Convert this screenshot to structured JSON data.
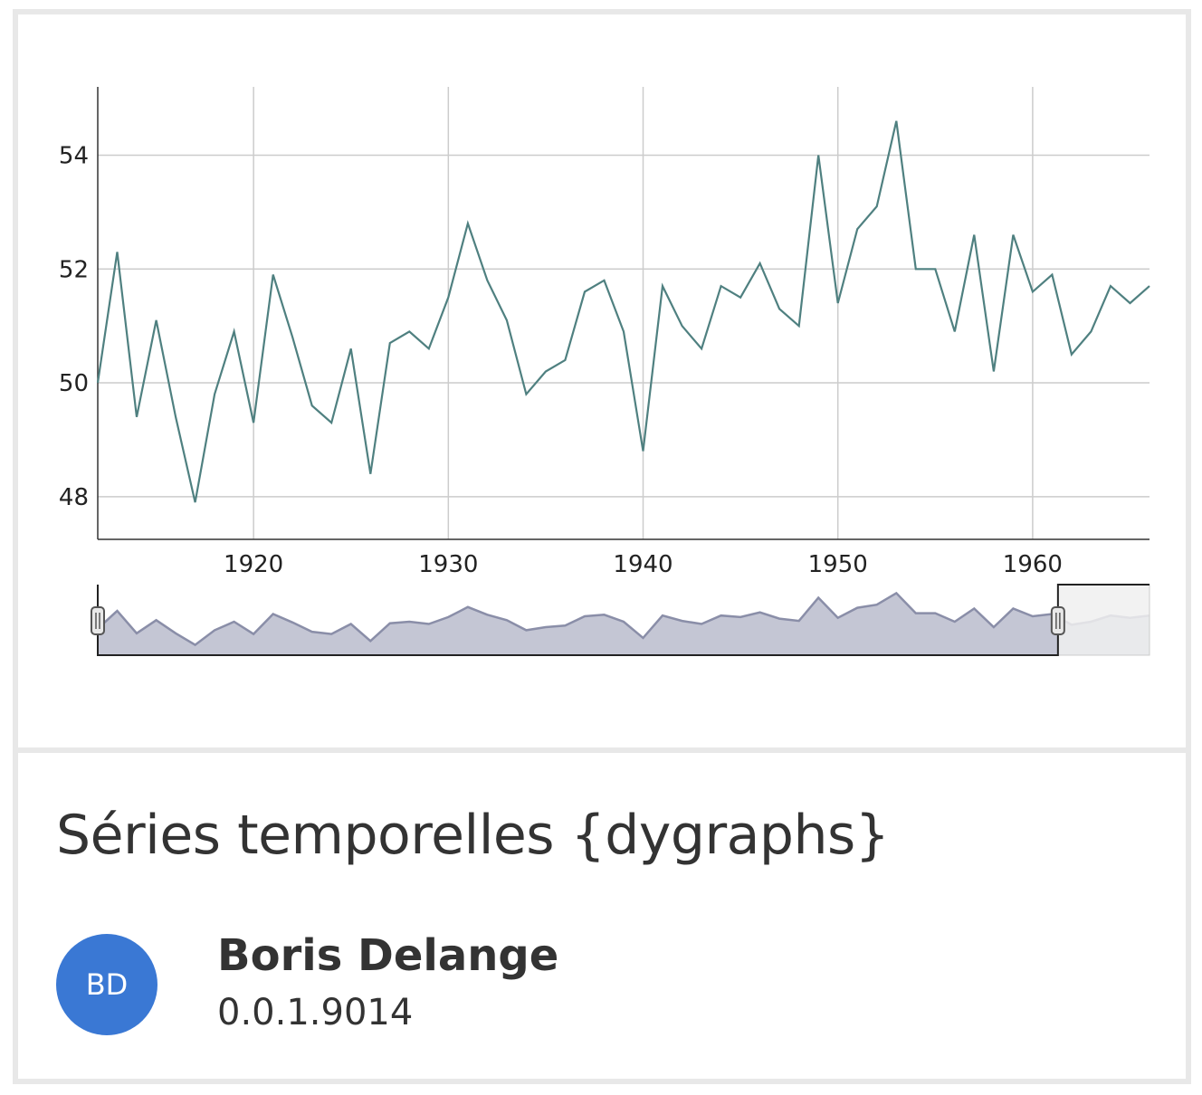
{
  "card": {
    "title": "Séries temporelles {dygraphs}",
    "author_initials": "BD",
    "author_name": "Boris Delange",
    "version": "0.0.1.9014"
  },
  "colors": {
    "series_line": "#4f8080",
    "range_fill": "#c4c6d4",
    "range_line": "#8a8ea8",
    "avatar": "#3a78d4"
  },
  "chart_data": {
    "type": "line",
    "x_ticks": [
      1920,
      1930,
      1940,
      1950,
      1960
    ],
    "y_ticks": [
      48,
      50,
      52,
      54
    ],
    "xlim": [
      1912,
      1966
    ],
    "ylim": [
      47.25,
      55.2
    ],
    "grid": true,
    "range_selector": {
      "visible": true,
      "selected": [
        1912,
        1961.3
      ]
    },
    "series": [
      {
        "x": [
          1912,
          1913,
          1914,
          1915,
          1916,
          1917,
          1918,
          1919,
          1920,
          1921,
          1922,
          1923,
          1924,
          1925,
          1926,
          1927,
          1928,
          1929,
          1930,
          1931,
          1932,
          1933,
          1934,
          1935,
          1936,
          1937,
          1938,
          1939,
          1940,
          1941,
          1942,
          1943,
          1944,
          1945,
          1946,
          1947,
          1948,
          1949,
          1950,
          1951,
          1952,
          1953,
          1954,
          1955,
          1956,
          1957,
          1958,
          1959,
          1960,
          1961,
          1962,
          1963,
          1964,
          1965,
          1966
        ],
        "values": [
          50.0,
          52.3,
          49.4,
          51.1,
          49.4,
          47.9,
          49.8,
          50.9,
          49.3,
          51.9,
          50.8,
          49.6,
          49.3,
          50.6,
          48.4,
          50.7,
          50.9,
          50.6,
          51.5,
          52.8,
          51.8,
          51.1,
          49.8,
          50.2,
          50.4,
          51.6,
          51.8,
          50.9,
          48.8,
          51.7,
          51.0,
          50.6,
          51.7,
          51.5,
          52.1,
          51.3,
          51.0,
          54.0,
          51.4,
          52.7,
          53.1,
          54.6,
          52.0,
          52.0,
          50.9,
          52.6,
          50.2,
          52.6,
          51.6,
          51.9,
          50.5,
          50.9,
          51.7,
          51.4,
          51.7
        ]
      }
    ]
  }
}
